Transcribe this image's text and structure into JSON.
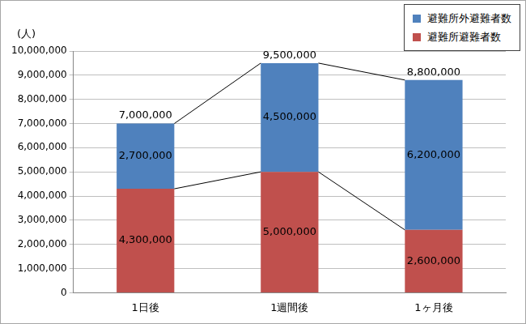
{
  "chart_data": {
    "type": "bar",
    "y_label": "(人)",
    "categories": [
      "1日後",
      "1週間後",
      "1ヶ月後"
    ],
    "series": [
      {
        "name": "避難所避難者数",
        "color": "#c0504d",
        "values": [
          4300000,
          5000000,
          2600000
        ],
        "value_labels": [
          "4,300,000",
          "5,000,000",
          "2,600,000"
        ]
      },
      {
        "name": "避難所外避難者数",
        "color": "#4f81bd",
        "values": [
          2700000,
          4500000,
          6200000
        ],
        "value_labels": [
          "2,700,000",
          "4,500,000",
          "6,200,000"
        ]
      }
    ],
    "totals": [
      7000000,
      9500000,
      8800000
    ],
    "total_labels": [
      "7,000,000",
      "9,500,000",
      "8,800,000"
    ],
    "ylim": [
      0,
      10000000
    ],
    "yticks": [
      0,
      {
        "value": 1000000,
        "label": "1,000,000"
      },
      {
        "value": 2000000,
        "label": "2,000,000"
      },
      {
        "value": 3000000,
        "label": "3,000,000"
      },
      {
        "value": 4000000,
        "label": "4,000,000"
      },
      {
        "value": 5000000,
        "label": "5,000,000"
      },
      {
        "value": 6000000,
        "label": "6,000,000"
      },
      {
        "value": 7000000,
        "label": "7,000,000"
      },
      {
        "value": 8000000,
        "label": "8,000,000"
      },
      {
        "value": 9000000,
        "label": "9,000,000"
      },
      {
        "value": 10000000,
        "label": "10,000,000"
      }
    ],
    "grid": true,
    "legend": "top-right",
    "stacked": true,
    "data_labels": true
  }
}
